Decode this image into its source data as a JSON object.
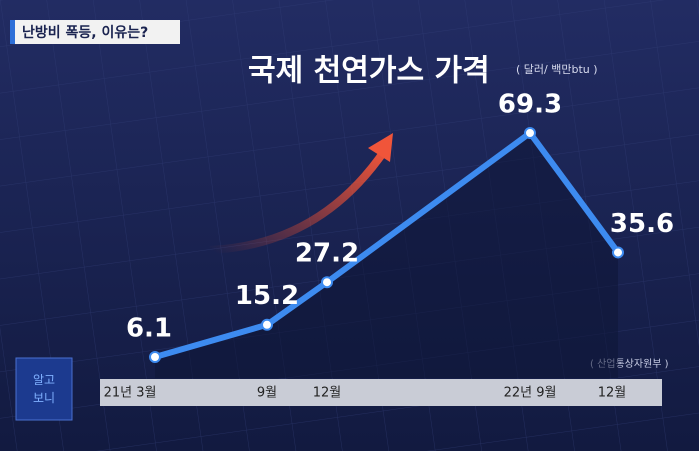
{
  "header": {
    "tag": "난방비 폭등, 이유는?",
    "logo": "알고\n보니"
  },
  "chart_data": {
    "type": "line",
    "title": "국제 천연가스 가격",
    "unit": "( 달러/ 백만btu )",
    "source": "( 산업통상자원부 )",
    "categories": [
      "21년 3월",
      "9월",
      "12월",
      "22년 9월",
      "12월"
    ],
    "series": [
      {
        "name": "국제 천연가스 가격",
        "color": "#3d8bf0",
        "values": [
          6.1,
          15.2,
          27.2,
          69.3,
          35.6
        ]
      }
    ]
  }
}
